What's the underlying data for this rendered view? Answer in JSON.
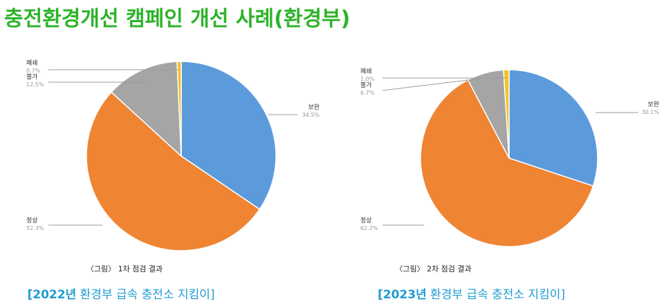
{
  "title": "충전환경개선 캠페인 개선 사례(환경부)",
  "colors": {
    "title": "#2db329",
    "subtitle": "#1f9bd1",
    "보완": "#5b9bdc",
    "정상": "#ef8433",
    "불가": "#a5a5a5",
    "폐쇄": "#f2c124"
  },
  "chart_data": [
    {
      "type": "pie",
      "caption": "〈그림〉 1차 점검 결과",
      "subtitle_year": "[2022년",
      "subtitle_rest": " 환경부 급속 충전소 지킴이]",
      "slices": [
        {
          "label": "보완",
          "value": 34.5,
          "pct": "34.5%"
        },
        {
          "label": "정상",
          "value": 52.3,
          "pct": "52.3%"
        },
        {
          "label": "불가",
          "value": 12.5,
          "pct": "12.5%"
        },
        {
          "label": "폐쇄",
          "value": 0.7,
          "pct": "0.7%"
        }
      ]
    },
    {
      "type": "pie",
      "caption": "〈그림〉 2차 점검 결과",
      "subtitle_year": "[2023년",
      "subtitle_rest": " 환경부 급속 충전소 지킴이]",
      "slices": [
        {
          "label": "보완",
          "value": 30.1,
          "pct": "30.1%"
        },
        {
          "label": "정상",
          "value": 62.2,
          "pct": "62.2%"
        },
        {
          "label": "불가",
          "value": 6.7,
          "pct": "6.7%"
        },
        {
          "label": "폐쇄",
          "value": 1.0,
          "pct": "1.0%"
        }
      ]
    }
  ]
}
